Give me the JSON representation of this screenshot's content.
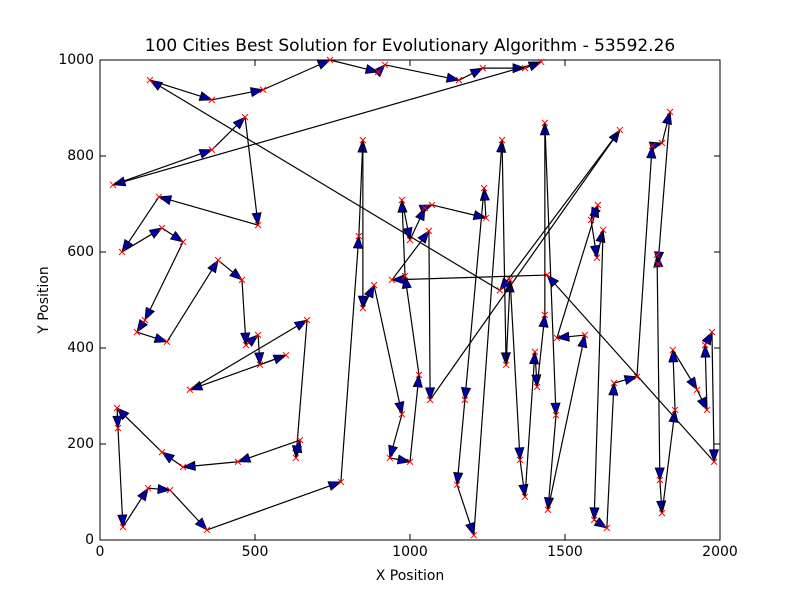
{
  "chart_data": {
    "type": "tour",
    "title": "100 Cities Best Solution for Evolutionary Algorithm - 53592.26",
    "xlabel": "X Position",
    "ylabel": "Y Position",
    "xlim": [
      0,
      2000
    ],
    "ylim": [
      0,
      1000
    ],
    "xticks": [
      0,
      500,
      1000,
      1500,
      2000
    ],
    "yticks": [
      0,
      200,
      400,
      600,
      800,
      1000
    ],
    "arrow_color": "#0000aa",
    "line_color": "#000000",
    "city_color": "#ff0000",
    "x": [
      161,
      361,
      526,
      742,
      897,
      919,
      1158,
      1235,
      1371,
      1423,
      42,
      361,
      468,
      510,
      190,
      71,
      200,
      268,
      145,
      119,
      216,
      381,
      458,
      471,
      510,
      516,
      600,
      290,
      668,
      632,
      645,
      445,
      268,
      200,
      55,
      58,
      74,
      155,
      226,
      345,
      777,
      835,
      848,
      848,
      884,
      974,
      935,
      1000,
      1029,
      984,
      974,
      1000,
      1048,
      1071,
      1245,
      1239,
      1177,
      1152,
      1206,
      1297,
      1310,
      1323,
      1355,
      1371,
      1403,
      1410,
      1435,
      1435,
      1471,
      1445,
      1564,
      1474,
      1606,
      1584,
      1603,
      1623,
      1594,
      1635,
      1658,
      1732,
      1781,
      1813,
      1839,
      1800,
      1797,
      1806,
      1813,
      1855,
      1848,
      1926,
      1958,
      1952,
      1974,
      1981,
      1442,
      942,
      1061,
      1065,
      1677,
      1290
    ],
    "y": [
      958,
      917,
      938,
      1000,
      975,
      990,
      958,
      983,
      983,
      996,
      740,
      813,
      881,
      656,
      715,
      600,
      650,
      621,
      458,
      433,
      413,
      583,
      542,
      406,
      427,
      365,
      385,
      313,
      458,
      171,
      208,
      163,
      152,
      183,
      275,
      233,
      27,
      108,
      104,
      21,
      121,
      633,
      833,
      483,
      531,
      262,
      171,
      163,
      344,
      550,
      708,
      625,
      692,
      698,
      671,
      733,
      292,
      115,
      10,
      833,
      365,
      542,
      167,
      90,
      392,
      319,
      469,
      869,
      260,
      63,
      427,
      421,
      698,
      667,
      588,
      646,
      42,
      25,
      327,
      340,
      821,
      827,
      892,
      575,
      594,
      125,
      56,
      271,
      396,
      313,
      271,
      406,
      433,
      163,
      552,
      542,
      644,
      292,
      854,
      520
    ]
  }
}
